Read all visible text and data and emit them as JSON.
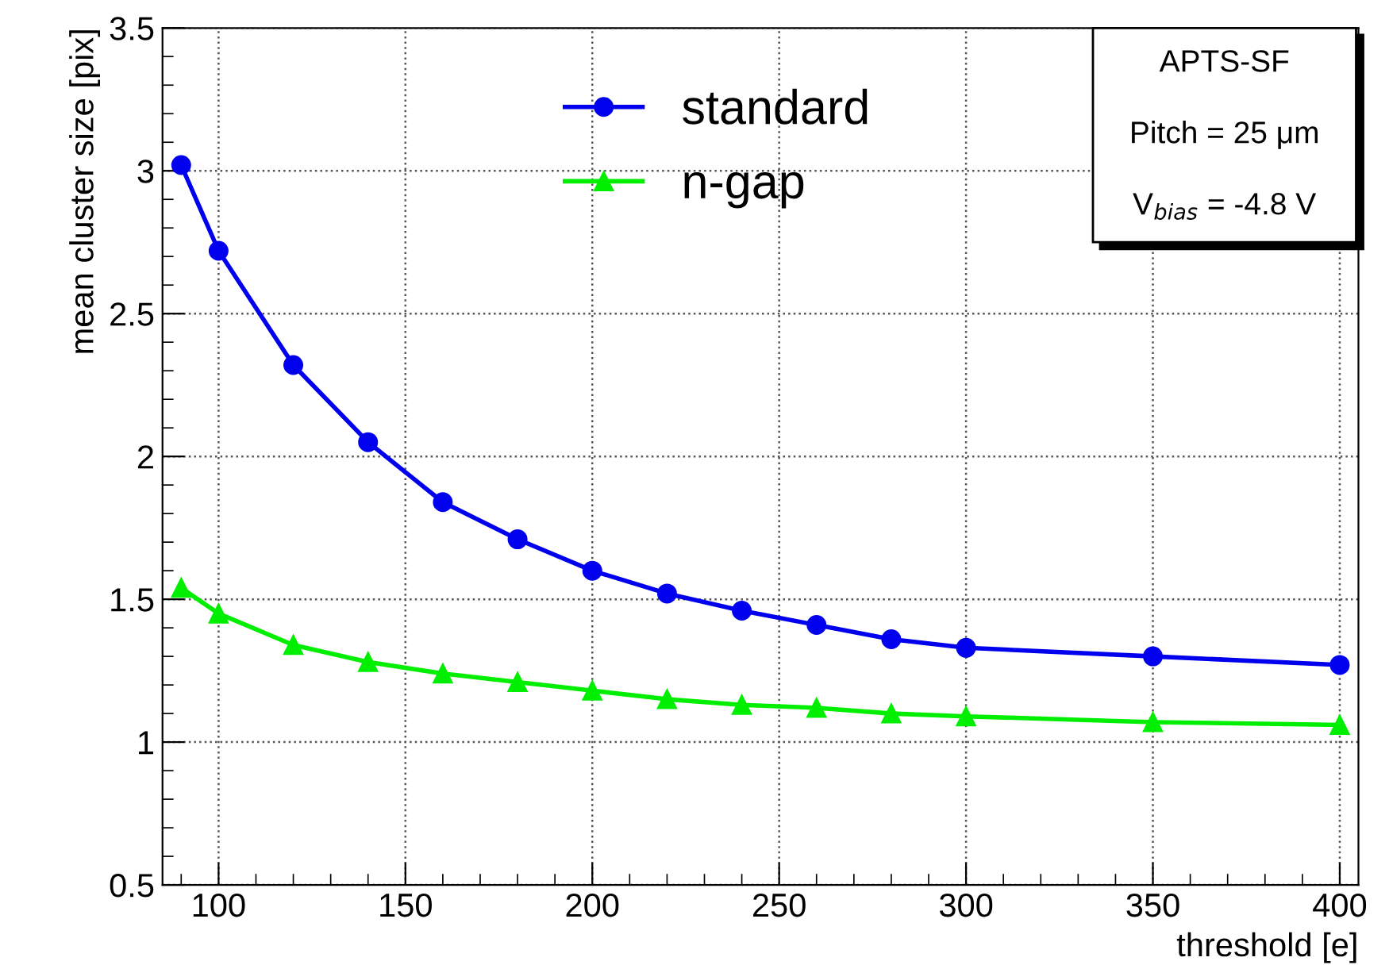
{
  "chart_data": {
    "type": "line",
    "xlabel": "threshold [e]",
    "ylabel": "mean cluster size [pix]",
    "x": [
      90,
      100,
      120,
      140,
      160,
      180,
      200,
      220,
      240,
      260,
      280,
      300,
      350,
      400
    ],
    "series": [
      {
        "name": "standard",
        "color": "#0000ee",
        "marker": "circle",
        "values": [
          3.02,
          2.72,
          2.32,
          2.05,
          1.84,
          1.71,
          1.6,
          1.52,
          1.46,
          1.41,
          1.36,
          1.33,
          1.3,
          1.27
        ]
      },
      {
        "name": "n-gap",
        "color": "#00ee00",
        "marker": "triangle",
        "values": [
          1.54,
          1.45,
          1.34,
          1.28,
          1.24,
          1.21,
          1.18,
          1.15,
          1.13,
          1.12,
          1.1,
          1.09,
          1.07,
          1.06
        ]
      }
    ],
    "annotations": [
      "APTS-SF",
      "Pitch = 25 μm",
      "V$_{bias}$ = -4.8 V"
    ],
    "xlim": [
      85,
      405
    ],
    "ylim": [
      0.5,
      3.5
    ],
    "xticks": [
      100,
      150,
      200,
      250,
      300,
      350,
      400
    ],
    "yticks": [
      0.5,
      1,
      1.5,
      2,
      2.5,
      3,
      3.5
    ],
    "grid": true,
    "legend": "top",
    "line_style": "solid"
  }
}
